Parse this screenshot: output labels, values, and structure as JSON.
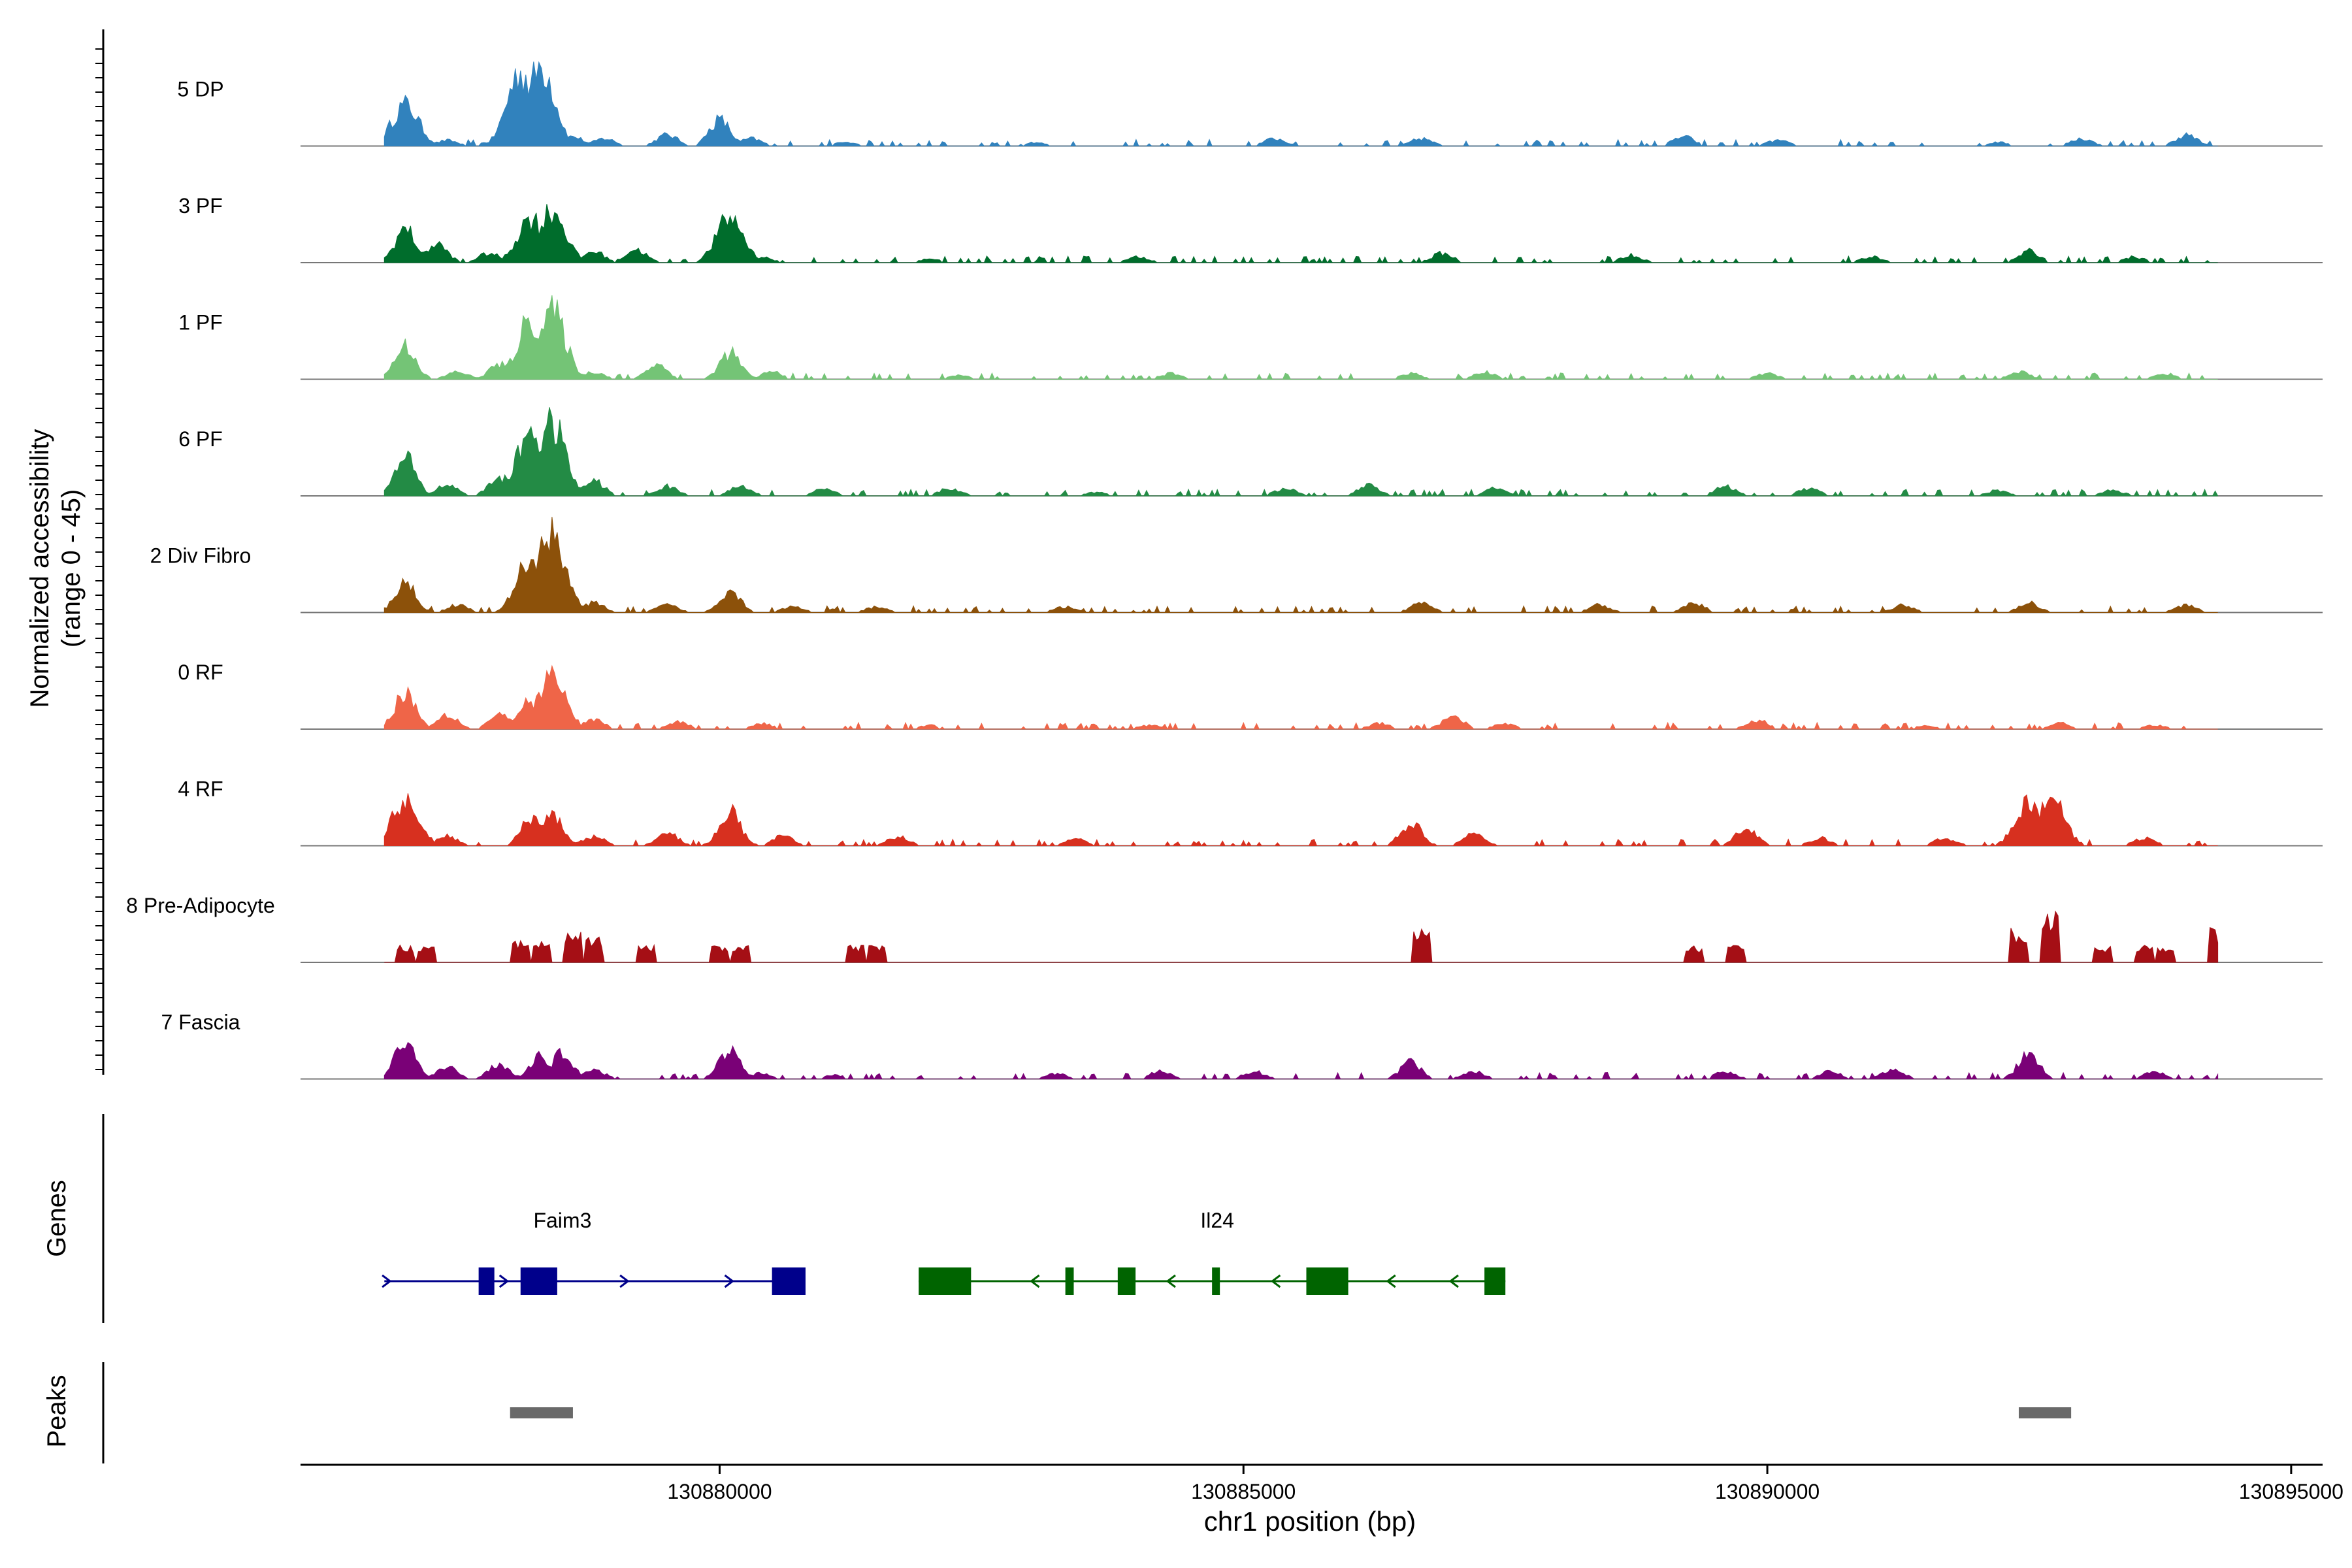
{
  "chart_data": {
    "type": "area",
    "title": "",
    "y_axis_label_line1": "Normalized accessibility",
    "y_axis_label_line2": "(range 0 - 45)",
    "ylim": [
      0,
      45
    ],
    "xlabel": "chr1 position (bp)",
    "xlim": [
      130876000,
      130895300
    ],
    "x_ticks": [
      130880000,
      130885000,
      130890000,
      130895000
    ],
    "tracks": [
      {
        "name": "5 DP",
        "color": "#3182bd",
        "values": [
          [
            130877000,
            22
          ],
          [
            130877400,
            3
          ],
          [
            130877800,
            2
          ],
          [
            130878100,
            40
          ],
          [
            130878300,
            43
          ],
          [
            130878600,
            5
          ],
          [
            130878900,
            4
          ],
          [
            130879500,
            6
          ],
          [
            130880000,
            14
          ],
          [
            130880300,
            4
          ],
          [
            130881200,
            2
          ],
          [
            130883000,
            2
          ],
          [
            130885300,
            4
          ],
          [
            130886700,
            4
          ],
          [
            130889200,
            5
          ],
          [
            130890100,
            3
          ],
          [
            130892200,
            2
          ],
          [
            130893000,
            4
          ],
          [
            130894000,
            6
          ]
        ]
      },
      {
        "name": "3 PF",
        "color": "#006d2c",
        "values": [
          [
            130877000,
            18
          ],
          [
            130877300,
            10
          ],
          [
            130877800,
            5
          ],
          [
            130878200,
            24
          ],
          [
            130878400,
            28
          ],
          [
            130878800,
            6
          ],
          [
            130879200,
            7
          ],
          [
            130880100,
            24
          ],
          [
            130880400,
            3
          ],
          [
            130882000,
            2
          ],
          [
            130884000,
            3
          ],
          [
            130886900,
            5
          ],
          [
            130888700,
            4
          ],
          [
            130891000,
            3
          ],
          [
            130892500,
            6
          ],
          [
            130893500,
            3
          ]
        ]
      },
      {
        "name": "1 PF",
        "color": "#74c476",
        "values": [
          [
            130877000,
            18
          ],
          [
            130877500,
            4
          ],
          [
            130877900,
            8
          ],
          [
            130878200,
            32
          ],
          [
            130878400,
            36
          ],
          [
            130878800,
            4
          ],
          [
            130879400,
            8
          ],
          [
            130880100,
            14
          ],
          [
            130880500,
            4
          ],
          [
            130882300,
            2
          ],
          [
            130884300,
            3
          ],
          [
            130886600,
            3
          ],
          [
            130887300,
            4
          ],
          [
            130890000,
            3
          ],
          [
            130892400,
            4
          ],
          [
            130893800,
            3
          ]
        ]
      },
      {
        "name": "6 PF",
        "color": "#238b45",
        "values": [
          [
            130877000,
            20
          ],
          [
            130877400,
            6
          ],
          [
            130877900,
            10
          ],
          [
            130878200,
            36
          ],
          [
            130878400,
            38
          ],
          [
            130878800,
            8
          ],
          [
            130879500,
            5
          ],
          [
            130880200,
            5
          ],
          [
            130881000,
            4
          ],
          [
            130882200,
            4
          ],
          [
            130883600,
            2
          ],
          [
            130885400,
            4
          ],
          [
            130886200,
            6
          ],
          [
            130887400,
            4
          ],
          [
            130889600,
            5
          ],
          [
            130890400,
            4
          ],
          [
            130892200,
            3
          ],
          [
            130893300,
            3
          ]
        ]
      },
      {
        "name": "2 Div Fibro",
        "color": "#8c510a",
        "values": [
          [
            130877000,
            16
          ],
          [
            130877500,
            4
          ],
          [
            130878200,
            30
          ],
          [
            130878400,
            44
          ],
          [
            130878800,
            5
          ],
          [
            130879500,
            4
          ],
          [
            130880100,
            12
          ],
          [
            130880700,
            3
          ],
          [
            130881500,
            3
          ],
          [
            130883300,
            3
          ],
          [
            130886700,
            5
          ],
          [
            130888400,
            4
          ],
          [
            130889300,
            5
          ],
          [
            130891300,
            4
          ],
          [
            130892500,
            5
          ],
          [
            130894000,
            4
          ]
        ]
      },
      {
        "name": "0 RF",
        "color": "#ef6548",
        "values": [
          [
            130877000,
            20
          ],
          [
            130877400,
            8
          ],
          [
            130877900,
            8
          ],
          [
            130878200,
            16
          ],
          [
            130878400,
            28
          ],
          [
            130878800,
            5
          ],
          [
            130879600,
            4
          ],
          [
            130880400,
            3
          ],
          [
            130882000,
            2
          ],
          [
            130884100,
            2
          ],
          [
            130886300,
            3
          ],
          [
            130887000,
            7
          ],
          [
            130887500,
            3
          ],
          [
            130889900,
            5
          ],
          [
            130891500,
            2
          ],
          [
            130892800,
            3
          ],
          [
            130893700,
            2
          ]
        ]
      },
      {
        "name": "4 RF",
        "color": "#d7301f",
        "values": [
          [
            130877000,
            24
          ],
          [
            130877400,
            5
          ],
          [
            130878200,
            14
          ],
          [
            130878400,
            18
          ],
          [
            130878800,
            5
          ],
          [
            130879500,
            7
          ],
          [
            130880100,
            18
          ],
          [
            130880600,
            5
          ],
          [
            130881700,
            5
          ],
          [
            130883400,
            4
          ],
          [
            130886600,
            12
          ],
          [
            130887200,
            6
          ],
          [
            130889800,
            10
          ],
          [
            130890500,
            4
          ],
          [
            130891700,
            4
          ],
          [
            130892500,
            22
          ],
          [
            130892700,
            26
          ],
          [
            130893600,
            4
          ]
        ]
      },
      {
        "name": "8 Pre-Adipocyte",
        "color": "#a50f15",
        "values": [
          [
            130877000,
            8
          ],
          [
            130877200,
            8
          ],
          [
            130878100,
            10
          ],
          [
            130878300,
            12
          ],
          [
            130878600,
            16
          ],
          [
            130878800,
            12
          ],
          [
            130879300,
            8
          ],
          [
            130880000,
            8
          ],
          [
            130880200,
            8
          ],
          [
            130881300,
            8
          ],
          [
            130881500,
            8
          ],
          [
            130886700,
            16
          ],
          [
            130889300,
            8
          ],
          [
            130889700,
            8
          ],
          [
            130892400,
            16
          ],
          [
            130892700,
            24
          ],
          [
            130893200,
            8
          ],
          [
            130893600,
            8
          ],
          [
            130893800,
            8
          ],
          [
            130894300,
            16
          ]
        ]
      },
      {
        "name": "7 Fascia",
        "color": "#7a0177",
        "values": [
          [
            130877000,
            20
          ],
          [
            130877400,
            6
          ],
          [
            130877900,
            8
          ],
          [
            130878300,
            12
          ],
          [
            130878500,
            14
          ],
          [
            130878800,
            5
          ],
          [
            130880100,
            16
          ],
          [
            130880400,
            3
          ],
          [
            130881100,
            2
          ],
          [
            130883200,
            3
          ],
          [
            130884200,
            4
          ],
          [
            130885100,
            4
          ],
          [
            130886600,
            9
          ],
          [
            130887200,
            4
          ],
          [
            130889600,
            4
          ],
          [
            130890600,
            4
          ],
          [
            130891200,
            5
          ],
          [
            130892500,
            14
          ],
          [
            130893700,
            4
          ]
        ]
      }
    ],
    "genes": [
      {
        "name": "Faim3",
        "strand": "+",
        "color": "#00008b",
        "start": 130876800,
        "end": 130880800,
        "exons": [
          [
            130877700,
            130877850
          ],
          [
            130878100,
            130878450
          ],
          [
            130880500,
            130880820
          ]
        ],
        "arrows": [
          130876830,
          130877950,
          130879100,
          130880100
        ]
      },
      {
        "name": "Il24",
        "strand": "-",
        "color": "#006400",
        "start": 130881900,
        "end": 130887500,
        "exons": [
          [
            130881900,
            130882400
          ],
          [
            130883300,
            130883380
          ],
          [
            130883800,
            130883970
          ],
          [
            130884700,
            130884760
          ],
          [
            130885600,
            130886000
          ],
          [
            130887300,
            130887500
          ]
        ],
        "arrows": [
          130883000,
          130884300,
          130885300,
          130886400,
          130887000
        ]
      }
    ],
    "peaks": [
      [
        130878000,
        130878600
      ],
      [
        130892400,
        130892900
      ]
    ],
    "peak_color": "#696969"
  },
  "panels": {
    "genes_label": "Genes",
    "peaks_label": "Peaks"
  }
}
